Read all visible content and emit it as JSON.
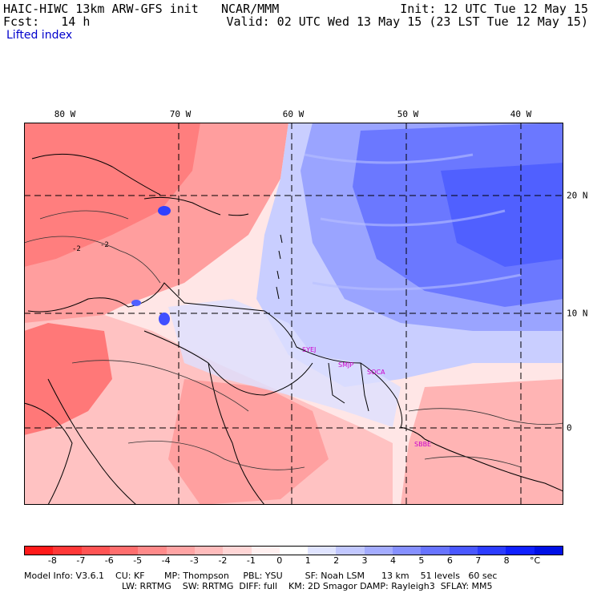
{
  "header": {
    "title": "HAIC-HIWC 13km ARW-GFS init",
    "org": "NCAR/MMM",
    "init": "Init: 12 UTC Tue 12 May 15",
    "fcst": "Fcst:   14 h",
    "valid": "Valid: 02 UTC Wed 13 May 15 (23 LST Tue 12 May 15)",
    "field": "Lifted index"
  },
  "map": {
    "lon_labels": [
      "80 W",
      "70 W",
      "60 W",
      "50 W",
      "40 W"
    ],
    "lat_labels": [
      "20 N",
      "10 N",
      "0"
    ],
    "contour_labels": [
      "-2",
      "-2"
    ],
    "stations": [
      "SYEJ",
      "SMJP",
      "SOCA",
      "SBBE"
    ]
  },
  "colorbar": {
    "labels": [
      "-8",
      "-7",
      "-6",
      "-5",
      "-4",
      "-3",
      "-2",
      "-1",
      "0",
      "1",
      "2",
      "3",
      "4",
      "5",
      "6",
      "7",
      "8",
      "°C"
    ],
    "colors": [
      "#ff1a1a",
      "#ff3838",
      "#ff5454",
      "#ff6e6e",
      "#ff8a8a",
      "#ffa4a4",
      "#ffbcbc",
      "#ffd6d6",
      "#fff0f0",
      "#ffffff",
      "#e0e4ff",
      "#c2c8ff",
      "#a4acff",
      "#8690ff",
      "#6874ff",
      "#4a58ff",
      "#2c3cff",
      "#1020ff",
      "#0010e6"
    ]
  },
  "footer": {
    "line1": "Model Info: V3.6.1    CU: KF       MP: Thompson     PBL: YSU        SF: Noah LSM      13 km    51 levels   60 sec",
    "line2": "LW: RRTMG    SW: RRTMG  DIFF: full    KM: 2D Smagor DAMP: Rayleigh3  SFLAY: MM5"
  }
}
